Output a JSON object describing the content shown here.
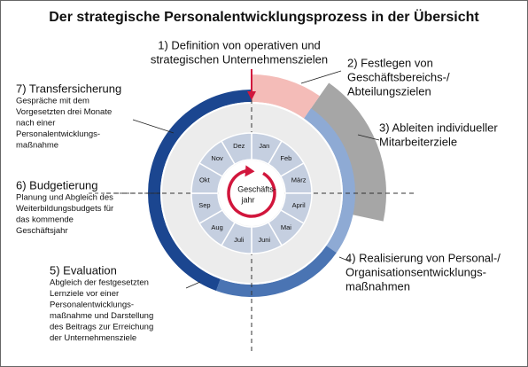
{
  "title": "Der strategische Personalentwicklungsprozess in der Übersicht",
  "steps": [
    {
      "lines": [
        "1) Definition von operativen und",
        "strategischen Unternehmenszielen"
      ]
    },
    {
      "lines": [
        "2) Festlegen von",
        "Geschäftsbereichs-/",
        "Abteilungszielen"
      ]
    },
    {
      "lines": [
        "3) Ableiten individueller",
        "Mitarbeiterziele"
      ]
    },
    {
      "lines": [
        "4) Realisierung von Personal-/",
        "Organisationsentwicklungs-",
        "maßnahmen"
      ]
    },
    {
      "lines": [
        "5) Evaluation"
      ],
      "description": [
        "Abgleich der festgesetzten",
        "Lernziele vor einer",
        "Personalentwicklungs-",
        "maßnahme und Darstellung",
        "des Beitrags zur Erreichung",
        "der Unternehmensziele"
      ]
    },
    {
      "lines": [
        "6) Budgetierung"
      ],
      "description": [
        "Planung und Abgleich des",
        "Weiterbildungsbudgets für",
        "das kommende",
        "Geschäftsjahr"
      ]
    },
    {
      "lines": [
        "7) Transfersicherung"
      ],
      "description": [
        "Gespräche mit dem",
        "Vorgesetzten drei Monate",
        "nach einer",
        "Personalentwicklungs-",
        "maßnahme"
      ]
    }
  ],
  "center": [
    "Geschäfts-",
    "jahr"
  ],
  "months": [
    "Jan",
    "Feb",
    "März",
    "April",
    "Mai",
    "Juni",
    "Juli",
    "Aug",
    "Sep",
    "Okt",
    "Nov",
    "Dez"
  ]
}
